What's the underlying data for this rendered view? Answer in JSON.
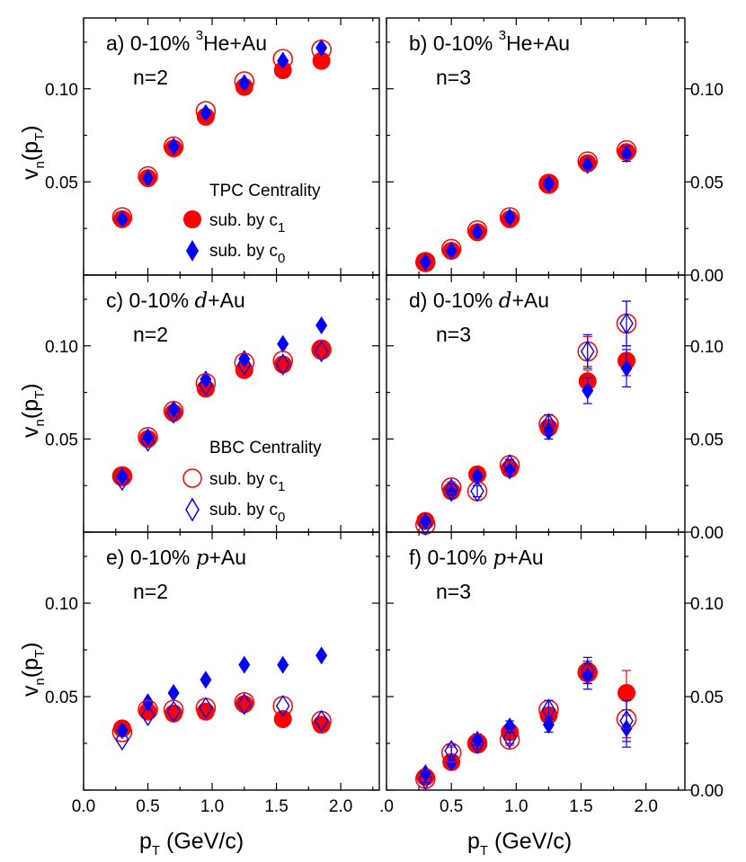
{
  "chart_data": {
    "type": "scatter",
    "x_axis": {
      "label_main": "p",
      "label_sub": "T",
      "label_unit": " (GeV/c)",
      "range": [
        0.0,
        2.3
      ],
      "ticks": [
        "0.0",
        "0.5",
        "1.0",
        "1.5",
        "2.0"
      ],
      "ticks_right_col": [
        ".0",
        "0.5",
        "1.0",
        "1.5",
        "2.0"
      ]
    },
    "y_axis": {
      "label_v": "v",
      "label_n": "n",
      "label_p": "(p",
      "label_T": "T",
      "label_close": ")",
      "range": [
        0.0,
        0.138
      ],
      "ticks_left": [
        "0.05",
        "0.10"
      ],
      "ticks_right": [
        "0.00",
        "0.05",
        "0.10"
      ]
    },
    "legends": {
      "tpc": {
        "title": "TPC Centrality",
        "item1": "sub. by c",
        "item1_sub": "1",
        "item2": "sub. by c",
        "item2_sub": "0"
      },
      "bbc": {
        "title": "BBC Centrality",
        "item1": "sub. by c",
        "item1_sub": "1",
        "item2": "sub. by c",
        "item2_sub": "0"
      }
    },
    "colors": {
      "red": "#ff0000",
      "blue": "#0000ff"
    },
    "x": [
      0.3,
      0.5,
      0.7,
      0.95,
      1.25,
      1.55,
      1.85
    ],
    "panels": [
      {
        "id": "a",
        "label": "a) 0-10% ",
        "sup": "3",
        "system": "He+Au",
        "system_italic": "",
        "n_label": "n=2",
        "series": [
          {
            "name": "TPC sub. by c1",
            "marker": "circle-filled",
            "color": "#ff0000",
            "values": [
              0.03,
              0.052,
              0.068,
              0.085,
              0.101,
              0.11,
              0.115
            ]
          },
          {
            "name": "TPC sub. by c0",
            "marker": "diamond-filled",
            "color": "#0000ff",
            "values": [
              0.03,
              0.052,
              0.069,
              0.087,
              0.103,
              0.115,
              0.122
            ]
          },
          {
            "name": "BBC sub. by c1",
            "marker": "circle-open",
            "color": "#ff0000",
            "values": [
              0.031,
              0.053,
              0.069,
              0.088,
              0.104,
              0.116,
              0.121
            ]
          }
        ]
      },
      {
        "id": "b",
        "label": "b) 0-10% ",
        "sup": "3",
        "system": "He+Au",
        "system_italic": "",
        "n_label": "n=3",
        "series": [
          {
            "name": "TPC sub. by c1",
            "marker": "circle-filled",
            "color": "#ff0000",
            "values": [
              0.007,
              0.013,
              0.023,
              0.03,
              0.049,
              0.06,
              0.066
            ]
          },
          {
            "name": "TPC sub. by c0",
            "marker": "diamond-filled",
            "color": "#0000ff",
            "values": [
              0.007,
              0.013,
              0.023,
              0.031,
              0.049,
              0.059,
              0.065
            ],
            "errors": [
              0.001,
              0.001,
              0.001,
              0.002,
              0.002,
              0.003,
              0.004
            ]
          },
          {
            "name": "BBC sub. by c1",
            "marker": "circle-open",
            "color": "#ff0000",
            "values": [
              0.007,
              0.014,
              0.024,
              0.031,
              0.049,
              0.061,
              0.067
            ]
          }
        ]
      },
      {
        "id": "c",
        "label": "c) 0-10% ",
        "sup": "",
        "system": "+Au",
        "system_italic": "d",
        "n_label": "n=2",
        "series": [
          {
            "name": "TPC sub. by c1",
            "marker": "circle-filled",
            "color": "#ff0000",
            "values": [
              0.03,
              0.05,
              0.064,
              0.077,
              0.087,
              0.09,
              0.098
            ]
          },
          {
            "name": "TPC sub. by c0",
            "marker": "diamond-filled",
            "color": "#0000ff",
            "values": [
              0.03,
              0.051,
              0.066,
              0.082,
              0.093,
              0.101,
              0.111
            ]
          },
          {
            "name": "BBC sub. by c1",
            "marker": "circle-open",
            "color": "#ff0000",
            "values": [
              0.03,
              0.051,
              0.065,
              0.08,
              0.091,
              0.092,
              0.098
            ]
          },
          {
            "name": "BBC sub. by c0",
            "marker": "diamond-open",
            "color": "#0000ff",
            "values": [
              0.028,
              0.049,
              0.064,
              0.079,
              0.09,
              0.09,
              0.097
            ]
          }
        ]
      },
      {
        "id": "d",
        "label": "d) 0-10% ",
        "sup": "",
        "system": "+Au",
        "system_italic": "d",
        "n_label": "n=3",
        "series": [
          {
            "name": "TPC sub. by c1",
            "marker": "circle-filled",
            "color": "#ff0000",
            "values": [
              0.006,
              0.022,
              0.031,
              0.034,
              0.056,
              0.081,
              0.092
            ],
            "errors": [
              0.001,
              0.002,
              0.002,
              0.002,
              0.004,
              0.006,
              0.008
            ]
          },
          {
            "name": "TPC sub. by c0",
            "marker": "diamond-filled",
            "color": "#0000ff",
            "values": [
              0.006,
              0.021,
              0.03,
              0.033,
              0.054,
              0.076,
              0.088
            ],
            "errors": [
              0.001,
              0.002,
              0.002,
              0.002,
              0.004,
              0.007,
              0.01
            ]
          },
          {
            "name": "BBC sub. by c1",
            "marker": "circle-open",
            "color": "#ff0000",
            "values": [
              0.004,
              0.024,
              0.022,
              0.036,
              0.058,
              0.097,
              0.112
            ],
            "errors": [
              0.002,
              0.003,
              0.003,
              0.003,
              0.005,
              0.008,
              0.012
            ]
          },
          {
            "name": "BBC sub. by c0",
            "marker": "diamond-open",
            "color": "#0000ff",
            "values": [
              0.004,
              0.023,
              0.022,
              0.036,
              0.058,
              0.097,
              0.112
            ],
            "errors": [
              0.002,
              0.003,
              0.003,
              0.003,
              0.005,
              0.009,
              0.012
            ]
          }
        ]
      },
      {
        "id": "e",
        "label": "e) 0-10% ",
        "sup": "",
        "system": "+Au",
        "system_italic": "p",
        "n_label": "n=2",
        "series": [
          {
            "name": "TPC sub. by c1",
            "marker": "circle-filled",
            "color": "#ff0000",
            "values": [
              0.033,
              0.042,
              0.041,
              0.042,
              0.046,
              0.038,
              0.035
            ]
          },
          {
            "name": "TPC sub. by c0",
            "marker": "diamond-filled",
            "color": "#0000ff",
            "values": [
              0.032,
              0.047,
              0.052,
              0.059,
              0.067,
              0.067,
              0.072
            ]
          },
          {
            "name": "BBC sub. by c1",
            "marker": "circle-open",
            "color": "#ff0000",
            "values": [
              0.031,
              0.043,
              0.043,
              0.044,
              0.047,
              0.045,
              0.037
            ]
          },
          {
            "name": "BBC sub. by c0",
            "marker": "diamond-open",
            "color": "#0000ff",
            "values": [
              0.027,
              0.04,
              0.042,
              0.044,
              0.046,
              0.045,
              0.037
            ]
          }
        ]
      },
      {
        "id": "f",
        "label": "f) 0-10% ",
        "sup": "",
        "system": "+Au",
        "system_italic": "p",
        "n_label": "n=3",
        "series": [
          {
            "name": "TPC sub. by c1",
            "marker": "circle-filled",
            "color": "#ff0000",
            "values": [
              0.007,
              0.015,
              0.025,
              0.031,
              0.04,
              0.063,
              0.052
            ],
            "errors": [
              0.001,
              0.002,
              0.002,
              0.003,
              0.004,
              0.006,
              0.012
            ]
          },
          {
            "name": "TPC sub. by c0",
            "marker": "diamond-filled",
            "color": "#0000ff",
            "values": [
              0.009,
              0.015,
              0.027,
              0.034,
              0.035,
              0.061,
              0.033
            ],
            "errors": [
              0.001,
              0.002,
              0.003,
              0.003,
              0.004,
              0.007,
              0.01
            ]
          },
          {
            "name": "BBC sub. by c1",
            "marker": "circle-open",
            "color": "#ff0000",
            "values": [
              0.006,
              0.02,
              0.025,
              0.027,
              0.043,
              0.063,
              0.038
            ],
            "errors": [
              0.002,
              0.003,
              0.003,
              0.003,
              0.005,
              0.006,
              0.01
            ]
          },
          {
            "name": "BBC sub. by c0",
            "marker": "diamond-open",
            "color": "#0000ff",
            "values": [
              0.006,
              0.021,
              0.025,
              0.028,
              0.043,
              0.064,
              0.037
            ],
            "errors": [
              0.002,
              0.003,
              0.003,
              0.003,
              0.005,
              0.007,
              0.011
            ]
          }
        ]
      }
    ]
  }
}
